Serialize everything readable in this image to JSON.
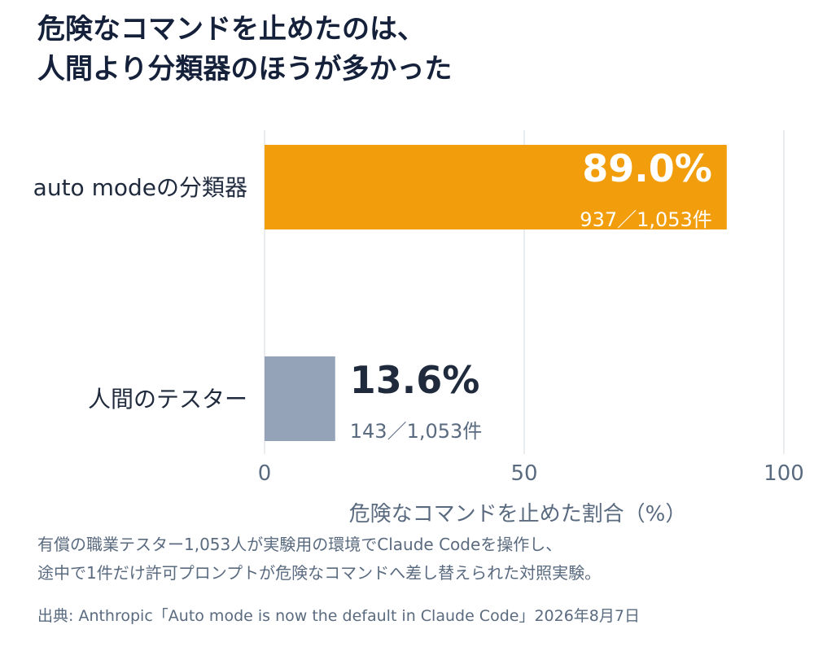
{
  "title": {
    "line1": "危険なコマンドを止めたのは、",
    "line2": "人間より分類器のほうが多かった"
  },
  "chart_data": {
    "type": "bar",
    "orientation": "horizontal",
    "categories": [
      "auto modeの分類器",
      "人間のテスター"
    ],
    "values": [
      89.0,
      13.6
    ],
    "value_labels": [
      "89.0%",
      "13.6%"
    ],
    "count_labels": [
      "937／1,053件",
      "143／1,053件"
    ],
    "colors": [
      "#f29e0c",
      "#94a3b8"
    ],
    "xlim": [
      0,
      100
    ],
    "xticks": [
      0,
      50,
      100
    ],
    "xlabel": "危険なコマンドを止めた割合（%）",
    "grid": true
  },
  "caption": {
    "line1": "有償の職業テスター1,053人が実験用の環境でClaude Codeを操作し、",
    "line2": "途中で1件だけ許可プロンプトが危険なコマンドへ差し替えられた対照実験。"
  },
  "source": "出典: Anthropic「Auto mode is now the default in Claude Code」2026年8月7日"
}
